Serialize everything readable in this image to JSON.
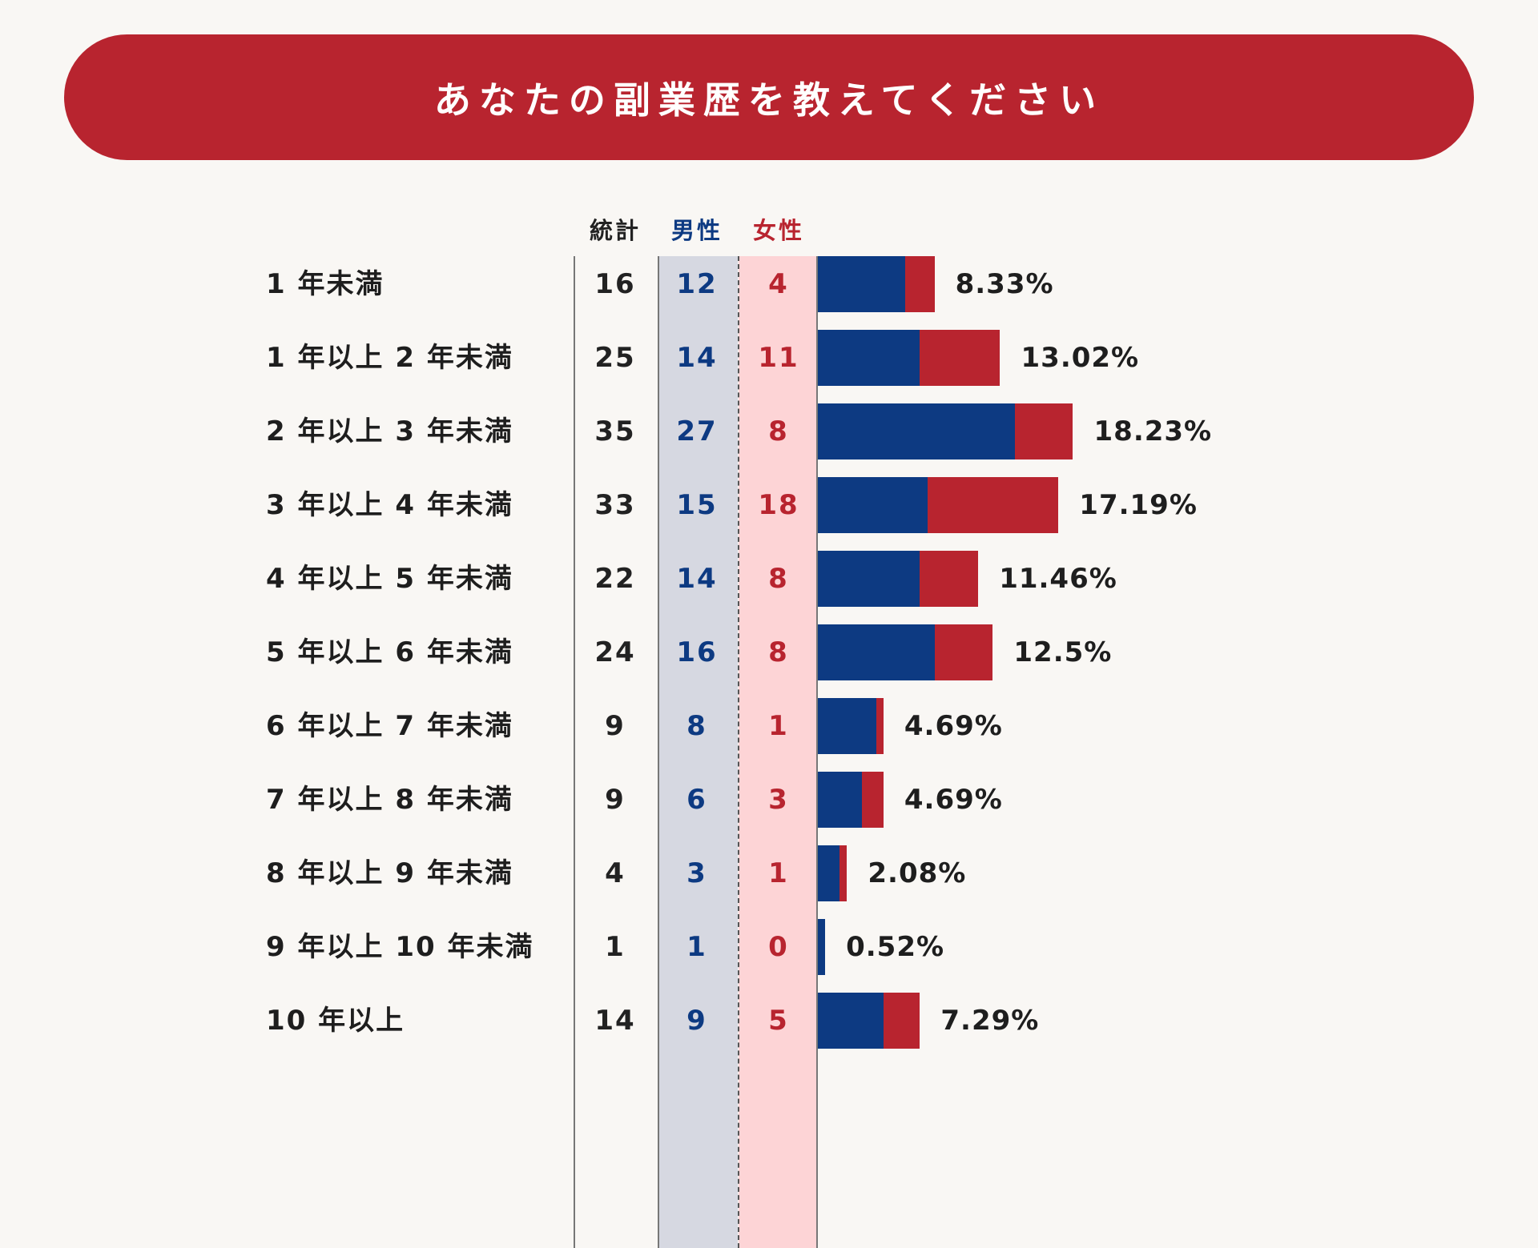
{
  "header": {
    "title": "あなたの副業歴を教えてください"
  },
  "colors": {
    "banner": "#b8242f",
    "male": "#0d3a82",
    "female": "#b8242f",
    "male_band": "#d6d8e1",
    "female_band": "#fdd4d6"
  },
  "chart_data": {
    "type": "bar",
    "orientation": "horizontal",
    "stacked": true,
    "title": "あなたの副業歴を教えてください",
    "columns": {
      "total": "統計",
      "male": "男性",
      "female": "女性"
    },
    "categories": [
      "1 年未満",
      "1 年以上 2 年未満",
      "2 年以上 3 年未満",
      "3 年以上 4 年未満",
      "4 年以上 5 年未満",
      "5 年以上 6 年未満",
      "6 年以上 7 年未満",
      "7 年以上 8 年未満",
      "8 年以上 9 年未満",
      "9 年以上 10 年未満",
      "10 年以上"
    ],
    "series": [
      {
        "name": "男性",
        "values": [
          12,
          14,
          27,
          15,
          14,
          16,
          8,
          6,
          3,
          1,
          9
        ]
      },
      {
        "name": "女性",
        "values": [
          4,
          11,
          8,
          18,
          8,
          8,
          1,
          3,
          1,
          0,
          5
        ]
      }
    ],
    "totals": [
      16,
      25,
      35,
      33,
      22,
      24,
      9,
      9,
      4,
      1,
      14
    ],
    "percentages": [
      "8.33%",
      "13.02%",
      "18.23%",
      "17.19%",
      "11.46%",
      "12.5%",
      "4.69%",
      "4.69%",
      "2.08%",
      "0.52%",
      "7.29%"
    ],
    "xlim": [
      0,
      35
    ]
  }
}
